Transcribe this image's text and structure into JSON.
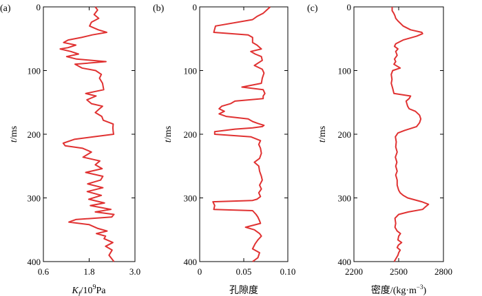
{
  "colors": {
    "curve": "#e03131",
    "axes": "#000000"
  },
  "chart_data": [
    {
      "type": "line",
      "panel_label": "(a)",
      "xlabel_parts": [
        "K",
        "f",
        "/10",
        "9",
        "Pa"
      ],
      "ylabel_parts": [
        "t",
        "/ms"
      ],
      "xlim": [
        0.6,
        3.0
      ],
      "ylim": [
        0,
        400
      ],
      "y_inverted": true,
      "xticks": [
        0.6,
        1.8,
        3.0
      ],
      "xtick_labels": [
        "0.6",
        "1.8",
        "3.0"
      ],
      "yticks": [
        0,
        100,
        200,
        300,
        400
      ],
      "ytick_labels": [
        "0",
        "100",
        "200",
        "300",
        "400"
      ],
      "series": [
        {
          "name": "Kf",
          "x": [
            1.96,
            2.02,
            1.93,
            2.05,
            1.86,
            1.81,
            2.04,
            2.26,
            1.88,
            1.6,
            1.25,
            1.13,
            1.45,
            1.25,
            1.04,
            1.32,
            1.52,
            1.21,
            1.47,
            2.24,
            1.43,
            1.61,
            1.97,
            2.12,
            2.07,
            2.15,
            2.18,
            1.71,
            1.98,
            1.74,
            1.86,
            2.15,
            2.07,
            1.96,
            2.13,
            2.17,
            2.43,
            2.42,
            2.43,
            2.44,
            1.91,
            1.41,
            1.12,
            1.17,
            1.63,
            1.86,
            1.64,
            2.08,
            1.96,
            2.14,
            1.71,
            2.16,
            2.1,
            1.76,
            2.16,
            1.75,
            2.12,
            1.79,
            2.2,
            1.83,
            2.37,
            1.96,
            2.45,
            2.39,
            1.45,
            1.27,
            1.8,
            2.03,
            2.27,
            1.99,
            2.23,
            2.19,
            2.42,
            2.23,
            2.4,
            2.32,
            2.45
          ],
          "y": [
            0,
            5,
            12,
            18,
            24,
            30,
            36,
            40,
            44,
            48,
            52,
            56,
            60,
            64,
            66,
            70,
            74,
            78,
            82,
            86,
            90,
            96,
            100,
            106,
            112,
            120,
            130,
            136,
            140,
            146,
            152,
            156,
            160,
            166,
            172,
            178,
            184,
            190,
            196,
            200,
            204,
            208,
            214,
            218,
            222,
            228,
            236,
            242,
            248,
            254,
            260,
            266,
            272,
            278,
            284,
            290,
            296,
            302,
            308,
            312,
            318,
            322,
            326,
            330,
            334,
            338,
            342,
            348,
            352,
            356,
            360,
            364,
            370,
            376,
            382,
            390,
            400
          ]
        }
      ]
    },
    {
      "type": "line",
      "panel_label": "(b)",
      "xlabel": "孔隙度",
      "ylabel_parts": [
        "t",
        "/ms"
      ],
      "xlim": [
        0,
        0.1
      ],
      "ylim": [
        0,
        400
      ],
      "y_inverted": true,
      "xticks": [
        0,
        0.05,
        0.1
      ],
      "xtick_labels": [
        "0",
        "0.05",
        "0.10"
      ],
      "yticks": [
        0,
        100,
        200,
        300,
        400
      ],
      "ytick_labels": [
        "0",
        "100",
        "200",
        "300",
        "400"
      ],
      "series": [
        {
          "name": "porosity",
          "x": [
            0.08,
            0.076,
            0.072,
            0.065,
            0.06,
            0.018,
            0.016,
            0.055,
            0.06,
            0.06,
            0.065,
            0.07,
            0.058,
            0.063,
            0.07,
            0.071,
            0.062,
            0.071,
            0.073,
            0.071,
            0.07,
            0.048,
            0.072,
            0.074,
            0.072,
            0.072,
            0.04,
            0.035,
            0.025,
            0.022,
            0.028,
            0.022,
            0.03,
            0.055,
            0.06,
            0.066,
            0.073,
            0.071,
            0.06,
            0.04,
            0.017,
            0.017,
            0.058,
            0.069,
            0.067,
            0.069,
            0.07,
            0.068,
            0.062,
            0.067,
            0.068,
            0.07,
            0.071,
            0.068,
            0.07,
            0.067,
            0.069,
            0.065,
            0.06,
            0.015,
            0.017,
            0.016,
            0.06,
            0.064,
            0.066,
            0.068,
            0.069,
            0.052,
            0.062,
            0.068,
            0.07,
            0.066,
            0.063,
            0.06,
            0.068,
            0.066,
            0.06
          ],
          "y": [
            0,
            5,
            10,
            15,
            20,
            30,
            40,
            44,
            48,
            56,
            60,
            66,
            70,
            74,
            78,
            84,
            92,
            98,
            104,
            112,
            120,
            126,
            130,
            136,
            140,
            144,
            148,
            152,
            156,
            160,
            164,
            168,
            172,
            176,
            180,
            183,
            186,
            188,
            190,
            192,
            196,
            200,
            204,
            210,
            216,
            222,
            230,
            238,
            244,
            250,
            258,
            266,
            272,
            280,
            286,
            292,
            298,
            302,
            304,
            306,
            312,
            318,
            320,
            326,
            330,
            336,
            340,
            346,
            350,
            356,
            360,
            366,
            372,
            380,
            386,
            394,
            400
          ]
        }
      ]
    },
    {
      "type": "line",
      "panel_label": "(c)",
      "xlabel_parts": [
        "密度/(kg·m",
        "−3",
        ")"
      ],
      "ylabel_parts": [
        "t",
        "/ms"
      ],
      "xlim": [
        2200,
        2800
      ],
      "ylim": [
        0,
        400
      ],
      "y_inverted": true,
      "xticks": [
        2200,
        2500,
        2800
      ],
      "xtick_labels": [
        "2200",
        "2500",
        "2800"
      ],
      "yticks": [
        0,
        100,
        200,
        300,
        400
      ],
      "ytick_labels": [
        "0",
        "100",
        "200",
        "300",
        "400"
      ],
      "series": [
        {
          "name": "density",
          "x": [
            2456,
            2456,
            2467,
            2475,
            2480,
            2495,
            2530,
            2580,
            2655,
            2660,
            2620,
            2530,
            2480,
            2472,
            2495,
            2480,
            2490,
            2472,
            2480,
            2468,
            2510,
            2460,
            2450,
            2455,
            2450,
            2460,
            2468,
            2580,
            2570,
            2550,
            2555,
            2560,
            2570,
            2612,
            2640,
            2648,
            2640,
            2620,
            2540,
            2495,
            2478,
            2484,
            2480,
            2490,
            2478,
            2488,
            2480,
            2490,
            2480,
            2490,
            2490,
            2500,
            2510,
            2530,
            2560,
            2655,
            2700,
            2680,
            2660,
            2565,
            2500,
            2475,
            2480,
            2475,
            2490,
            2512,
            2500,
            2495,
            2520,
            2498,
            2490,
            2510,
            2500,
            2495,
            2485,
            2475,
            2470
          ],
          "y": [
            0,
            6,
            10,
            14,
            18,
            22,
            30,
            36,
            40,
            42,
            46,
            52,
            58,
            62,
            66,
            70,
            76,
            82,
            86,
            90,
            96,
            100,
            106,
            114,
            120,
            128,
            136,
            140,
            144,
            148,
            152,
            156,
            160,
            164,
            170,
            176,
            182,
            188,
            194,
            198,
            204,
            212,
            220,
            228,
            236,
            244,
            250,
            258,
            264,
            272,
            280,
            288,
            292,
            296,
            300,
            306,
            310,
            314,
            318,
            322,
            326,
            332,
            340,
            346,
            352,
            356,
            360,
            366,
            370,
            374,
            378,
            382,
            386,
            390,
            394,
            398,
            400
          ]
        }
      ]
    }
  ]
}
